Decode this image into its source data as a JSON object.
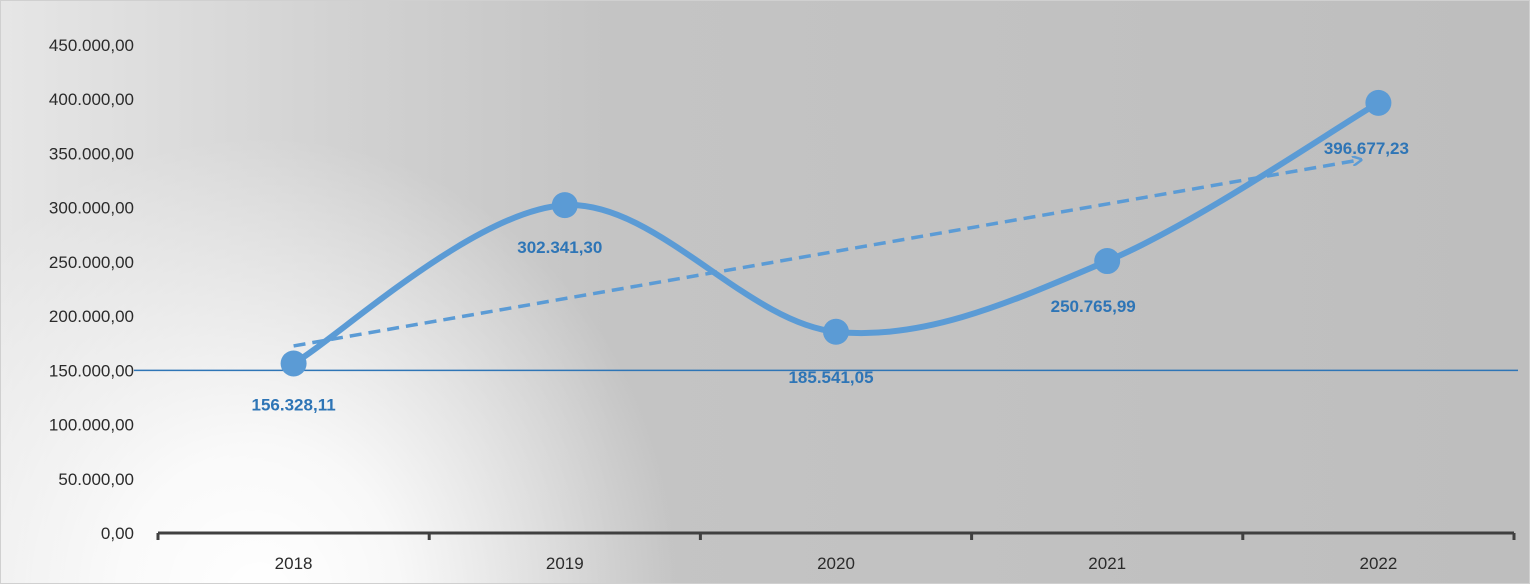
{
  "chart_data": {
    "type": "line",
    "categories": [
      "2018",
      "2019",
      "2020",
      "2021",
      "2022"
    ],
    "values": [
      156328.11,
      302341.3,
      185541.05,
      250765.99,
      396677.23
    ],
    "value_labels": [
      "156.328,11",
      "302.341,30",
      "185.541,05",
      "250.765,99",
      "396.677,23"
    ],
    "ylim": [
      0,
      450000
    ],
    "ytick_labels": [
      "0,00",
      "50.000,00",
      "100.000,00",
      "150.000,00",
      "200.000,00",
      "250.000,00",
      "300.000,00",
      "350.000,00",
      "400.000,00",
      "450.000,00"
    ],
    "reference_line": 150000,
    "trend": {
      "style": "dashed",
      "with_arrow": true
    },
    "smooth": true,
    "grid": false,
    "colors": {
      "series": "#5b9bd5",
      "label": "#2e75b6",
      "reference": "#2e75b6",
      "axis": "#404040"
    }
  }
}
